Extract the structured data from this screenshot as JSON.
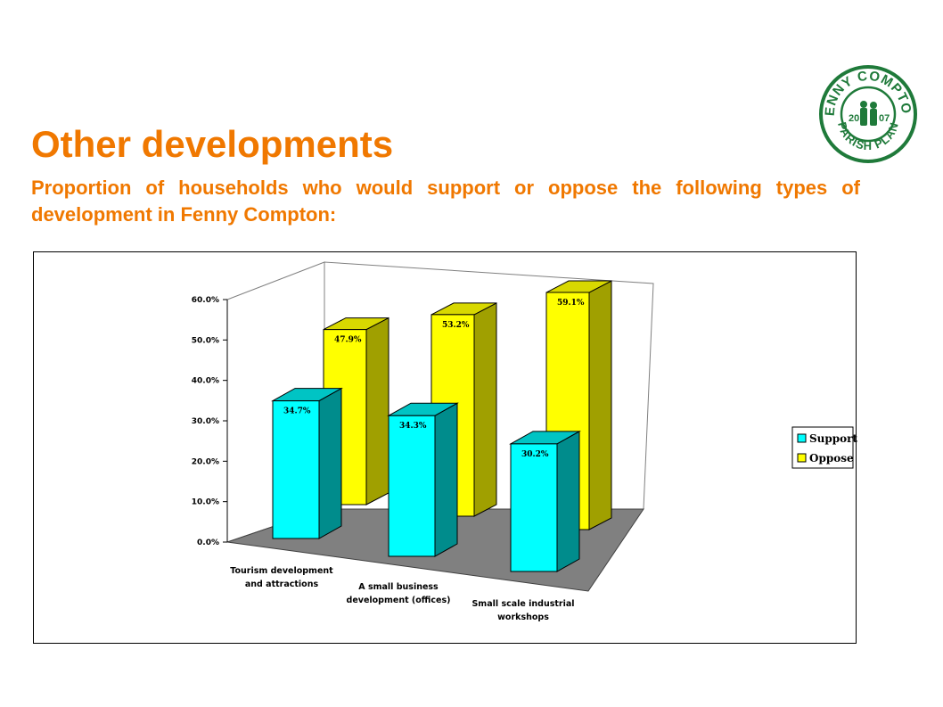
{
  "header": {
    "title": "Other developments",
    "subtitle": "Proportion of households who would support or oppose the following types of development in Fenny Compton:"
  },
  "logo": {
    "top_text": "FENNY COMPTON",
    "bottom_text": "PARISH PLAN",
    "year_left": "20",
    "year_right": "07",
    "color": "#1f7a3a"
  },
  "chart_data": {
    "type": "bar",
    "categories": [
      [
        "Tourism development",
        "and attractions"
      ],
      [
        "A small business",
        "development (offices)"
      ],
      [
        "Small scale industrial",
        "workshops"
      ]
    ],
    "series": [
      {
        "name": "Support",
        "values": [
          34.7,
          34.3,
          30.2
        ],
        "labels": [
          "34.7%",
          "34.3%",
          "30.2%"
        ],
        "color": "#00ffff"
      },
      {
        "name": "Oppose",
        "values": [
          47.9,
          53.2,
          59.1
        ],
        "labels": [
          "47.9%",
          "53.2%",
          "59.1%"
        ],
        "color": "#ffff00"
      }
    ],
    "yticks": [
      "0.0%",
      "10.0%",
      "20.0%",
      "30.0%",
      "40.0%",
      "50.0%",
      "60.0%"
    ],
    "ylim": [
      0,
      60
    ],
    "legend_position": "right",
    "floor_color": "#808080"
  }
}
